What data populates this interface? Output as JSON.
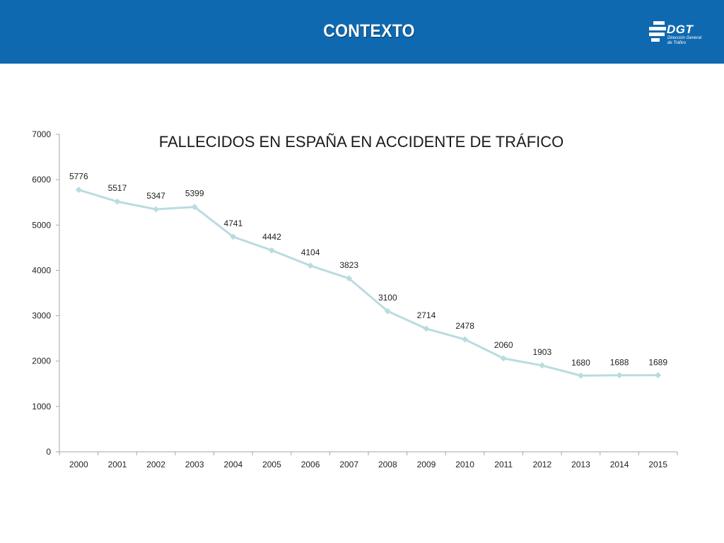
{
  "header": {
    "title": "CONTEXTO",
    "background_color": "#0f69b0",
    "logo": {
      "text": "DGT",
      "subtitle_line1": "Dirección General",
      "subtitle_line2": "de Tráfico",
      "icon": "dgt-logo-icon"
    }
  },
  "chart_data": {
    "type": "line",
    "title": "FALLECIDOS EN ESPAÑA EN ACCIDENTE DE TRÁFICO",
    "xlabel": "",
    "ylabel": "",
    "categories": [
      "2000",
      "2001",
      "2002",
      "2003",
      "2004",
      "2005",
      "2006",
      "2007",
      "2008",
      "2009",
      "2010",
      "2011",
      "2012",
      "2013",
      "2014",
      "2015"
    ],
    "series": [
      {
        "values": [
          5776,
          5517,
          5347,
          5399,
          4741,
          4442,
          4104,
          3823,
          3100,
          2714,
          2478,
          2060,
          1903,
          1680,
          1688,
          1689
        ],
        "color": "#b9dce0",
        "marker": "diamond"
      }
    ],
    "ylim": [
      0,
      7000
    ],
    "yticks": [
      0,
      1000,
      2000,
      3000,
      4000,
      5000,
      6000,
      7000
    ],
    "grid": false,
    "legend": "none",
    "data_labels": true
  }
}
